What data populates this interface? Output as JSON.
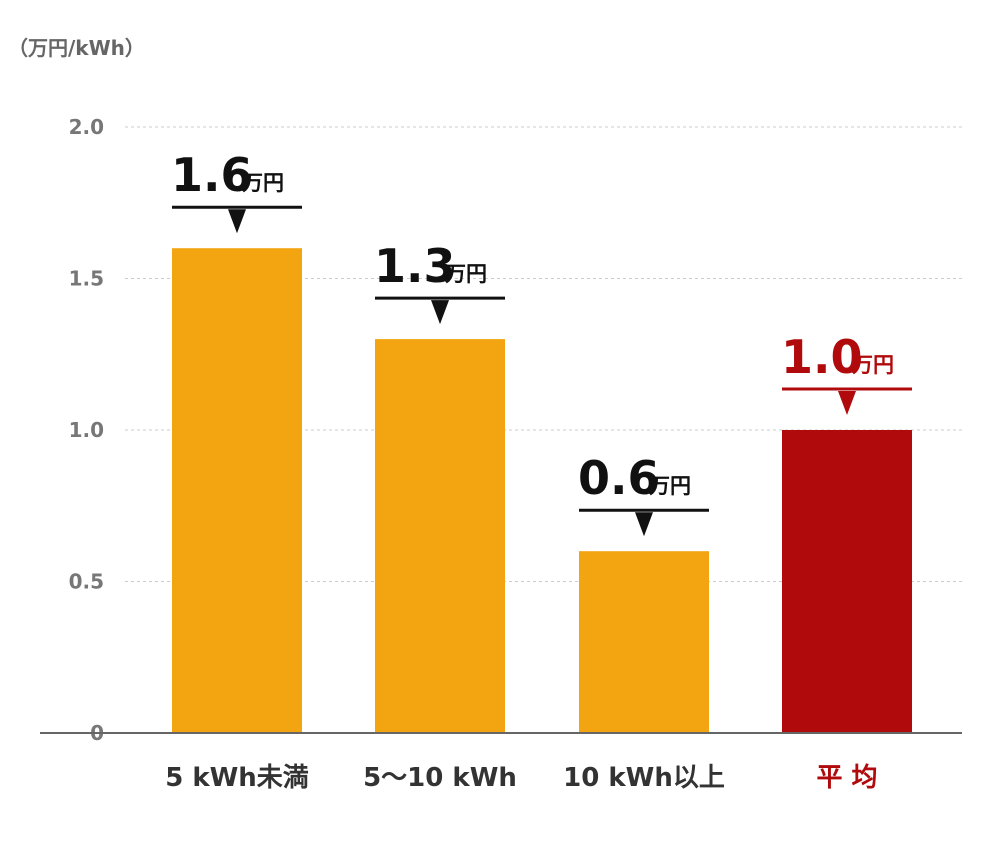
{
  "chart_data": {
    "type": "bar",
    "unit_label": "（万円/kWh）",
    "categories": [
      "5 kWh未満",
      "5～10 kWh",
      "10 kWh以上",
      "平 均"
    ],
    "values": [
      1.6,
      1.3,
      0.6,
      1.0
    ],
    "value_labels": [
      "1.6",
      "1.3",
      "0.6",
      "1.0"
    ],
    "value_unit": "万円",
    "yticks": [
      "0",
      "0.5",
      "1.0",
      "1.5",
      "2.0"
    ],
    "ylim": [
      0,
      2.0
    ],
    "grid": true,
    "colors": {
      "default_bar": "#F2A511",
      "highlight_bar": "#B00A0C",
      "highlight_text": "#B00A0C",
      "text": "#111111",
      "grid": "#cccccc",
      "axis": "#666666"
    },
    "highlight_index": 3
  }
}
